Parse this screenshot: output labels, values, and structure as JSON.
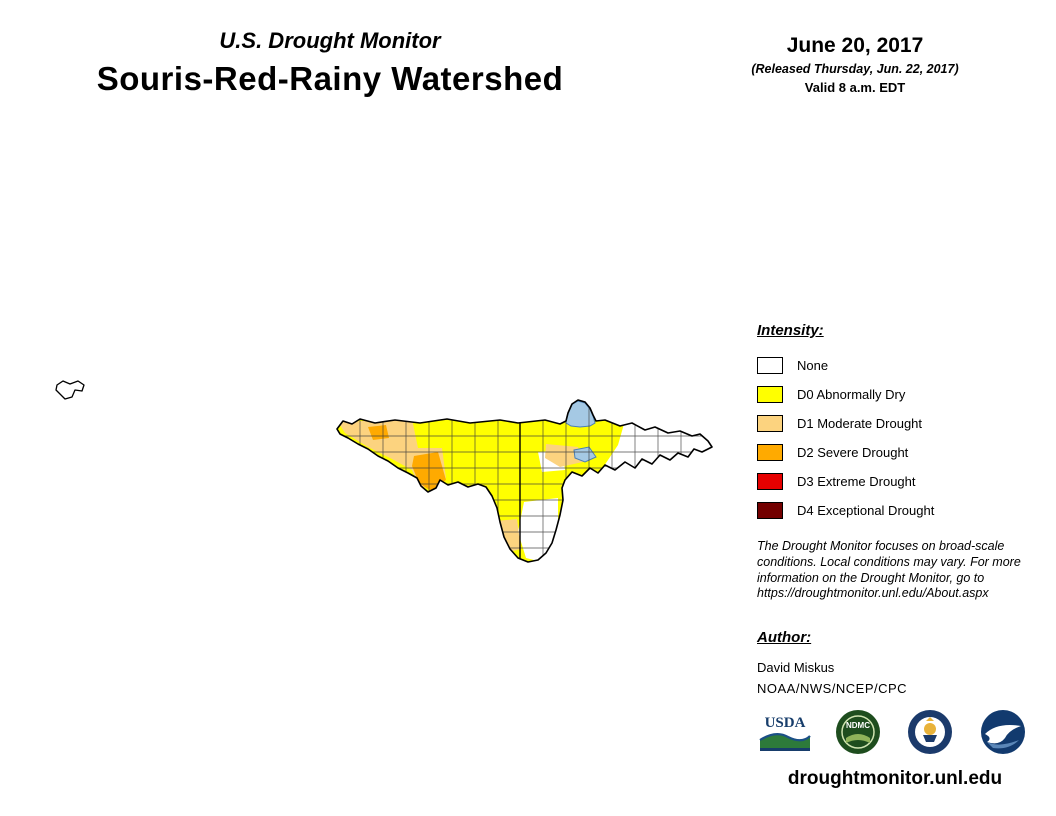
{
  "header": {
    "title": "U.S. Drought Monitor",
    "region": "Souris-Red-Rainy Watershed",
    "date": "June 20, 2017",
    "released": "(Released Thursday, Jun. 22, 2017)",
    "valid": "Valid 8 a.m. EDT"
  },
  "legend": {
    "heading": "Intensity:",
    "items": [
      {
        "label": "None",
        "color": "#FFFFFF"
      },
      {
        "label": "D0 Abnormally Dry",
        "color": "#FFFF00"
      },
      {
        "label": "D1 Moderate Drought",
        "color": "#FCD37F"
      },
      {
        "label": "D2 Severe Drought",
        "color": "#FFAA00"
      },
      {
        "label": "D3 Extreme Drought",
        "color": "#E60000"
      },
      {
        "label": "D4 Exceptional Drought",
        "color": "#730000"
      }
    ]
  },
  "map": {
    "water_color": "#A5C9E4"
  },
  "disclaimer": "The Drought Monitor focuses on broad-scale conditions. Local conditions may vary. For more information on the Drought Monitor, go to https://droughtmonitor.unl.edu/About.aspx",
  "author": {
    "heading": "Author:",
    "name": "David Miskus",
    "org": "NOAA/NWS/NCEP/CPC"
  },
  "logos": [
    {
      "name": "usda-logo",
      "label": "USDA"
    },
    {
      "name": "ndmc-logo",
      "label": "NDMC"
    },
    {
      "name": "commerce-seal-logo",
      "label": ""
    },
    {
      "name": "noaa-logo",
      "label": ""
    }
  ],
  "footer": {
    "website": "droughtmonitor.unl.edu"
  }
}
